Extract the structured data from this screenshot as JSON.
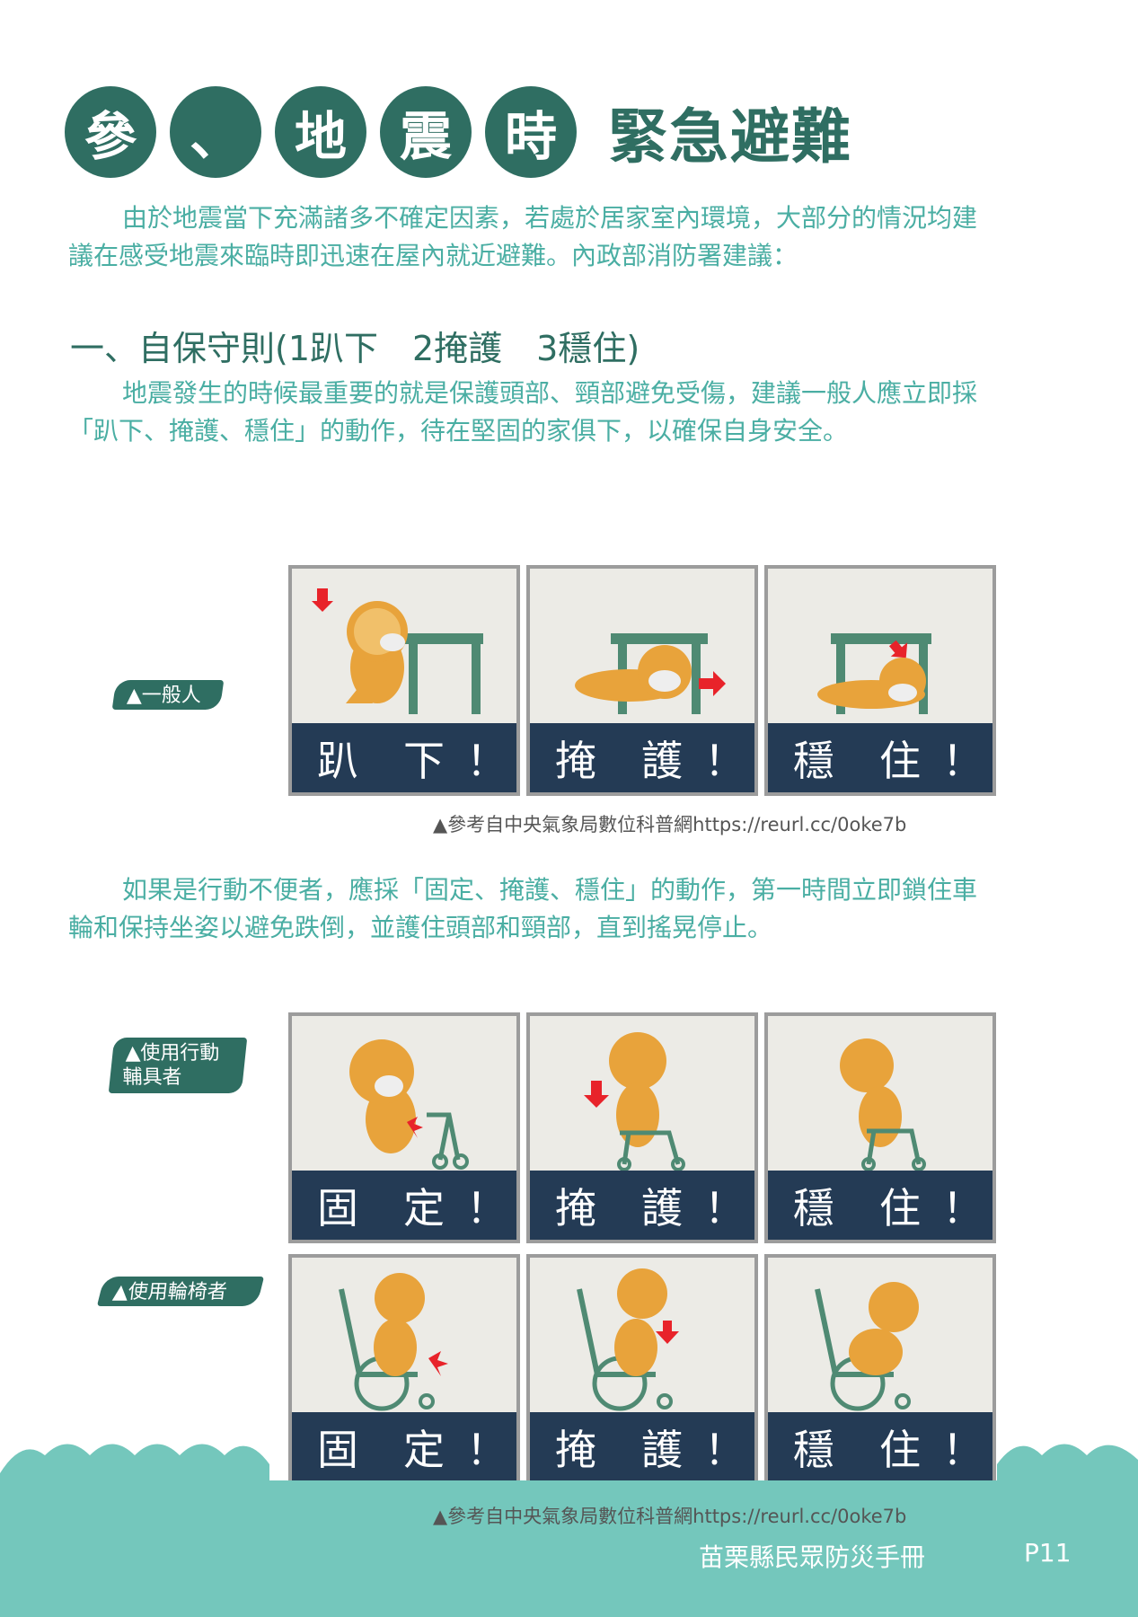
{
  "title": {
    "circles": [
      "參",
      "、",
      "地",
      "震",
      "時"
    ],
    "main": "緊急避難"
  },
  "intro": {
    "line1": "由於地震當下充滿諸多不確定因素，若處於居家室內環境，大部分的情況均建",
    "line2": "議在感受地震來臨時即迅速在屋內就近避難。內政部消防署建議："
  },
  "section1": {
    "heading": "一、自保守則(1趴下　2掩護　3穩住)",
    "line1": "地震發生的時候最重要的就是保護頭部、頸部避免受傷，建議一般人應立即採",
    "line2": "「趴下、掩護、穩住」的動作，待在堅固的家俱下，以確保自身安全。"
  },
  "groups": {
    "general": "▲一般人",
    "mobility_line1": "▲使用行動",
    "mobility_line2": "輔具者",
    "wheelchair": "▲使用輪椅者"
  },
  "panels": {
    "row1": [
      {
        "c1": "趴",
        "c2": "下",
        "c3": "！"
      },
      {
        "c1": "掩",
        "c2": "護",
        "c3": "！"
      },
      {
        "c1": "穩",
        "c2": "住",
        "c3": "！"
      }
    ],
    "row2": [
      {
        "c1": "固",
        "c2": "定",
        "c3": "！"
      },
      {
        "c1": "掩",
        "c2": "護",
        "c3": "！"
      },
      {
        "c1": "穩",
        "c2": "住",
        "c3": "！"
      }
    ],
    "row3": [
      {
        "c1": "固",
        "c2": "定",
        "c3": "！"
      },
      {
        "c1": "掩",
        "c2": "護",
        "c3": "！"
      },
      {
        "c1": "穩",
        "c2": "住",
        "c3": "！"
      }
    ]
  },
  "captions": {
    "ref1": "▲參考自中央氣象局數位科普網https://reurl.cc/0oke7b",
    "ref2": "▲參考自中央氣象局數位科普網https://reurl.cc/0oke7b"
  },
  "section2": {
    "line1": "如果是行動不便者，應採「固定、掩護、穩住」的動作，第一時間立即鎖住車",
    "line2": "輪和保持坐姿以避免跌倒，並護住頭部和頸部，直到搖晃停止。"
  },
  "footer": {
    "book": "苗栗縣民眾防災手冊",
    "page": "P11"
  },
  "colors": {
    "dark_green": "#2f6e62",
    "text_teal": "#4aaea3",
    "label_navy": "#243b55",
    "footer_teal": "#74c7bc",
    "arrow_red": "#e8232a"
  }
}
